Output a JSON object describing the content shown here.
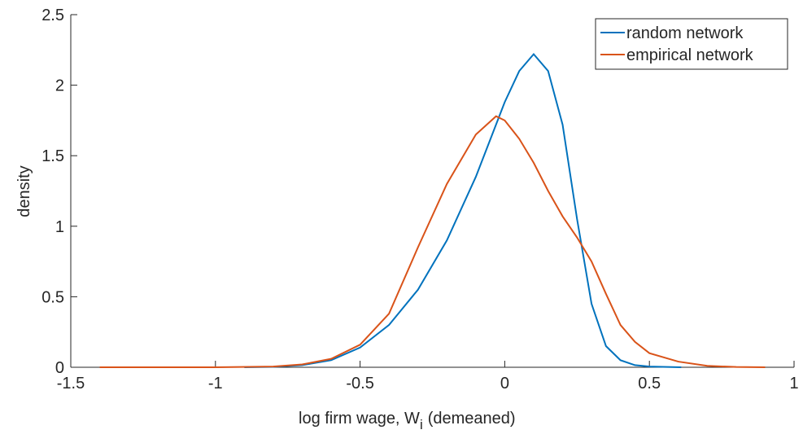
{
  "chart_data": {
    "type": "line",
    "xlabel": {
      "text": "log firm wage, W",
      "subscript": "i",
      "after": "(demeaned)"
    },
    "ylabel": "density",
    "xlim": [
      -1.5,
      1
    ],
    "xticks": [
      -1.5,
      -1,
      -0.5,
      0,
      0.5,
      1
    ],
    "ylim": [
      0,
      2.5
    ],
    "yticks": [
      0,
      0.5,
      1,
      1.5,
      2,
      2.5
    ],
    "legend": "upper right",
    "series": [
      {
        "name": "random network",
        "color": "#0072bd",
        "x": [
          -0.9,
          -0.8,
          -0.7,
          -0.6,
          -0.5,
          -0.4,
          -0.3,
          -0.2,
          -0.1,
          0,
          0.05,
          0.1,
          0.15,
          0.2,
          0.25,
          0.3,
          0.35,
          0.4,
          0.45,
          0.5,
          0.61
        ],
        "values": [
          0,
          0.003,
          0.015,
          0.05,
          0.14,
          0.3,
          0.55,
          0.9,
          1.35,
          1.88,
          2.1,
          2.22,
          2.1,
          1.72,
          1.05,
          0.45,
          0.15,
          0.05,
          0.015,
          0.005,
          0
        ]
      },
      {
        "name": "empirical network",
        "color": "#d95319",
        "x": [
          -1.4,
          -1,
          -0.8,
          -0.7,
          -0.6,
          -0.5,
          -0.4,
          -0.3,
          -0.2,
          -0.1,
          -0.03,
          0,
          0.05,
          0.1,
          0.15,
          0.2,
          0.25,
          0.3,
          0.35,
          0.4,
          0.45,
          0.5,
          0.6,
          0.7,
          0.8,
          0.9
        ],
        "values": [
          0,
          0,
          0.005,
          0.02,
          0.06,
          0.16,
          0.38,
          0.85,
          1.3,
          1.65,
          1.78,
          1.75,
          1.62,
          1.45,
          1.25,
          1.07,
          0.92,
          0.75,
          0.52,
          0.3,
          0.18,
          0.1,
          0.04,
          0.01,
          0.002,
          0
        ]
      }
    ]
  }
}
